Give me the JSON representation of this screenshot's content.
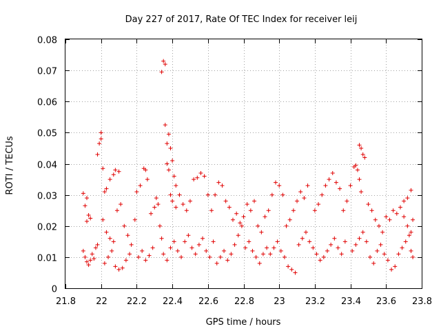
{
  "chart_data": {
    "type": "scatter",
    "title": "Day 227 of 2017, Rate Of TEC Index for receiver leij",
    "xlabel": "GPS time / hours",
    "ylabel": "ROTI / TECUs",
    "xlim": [
      21.8,
      23.8
    ],
    "ylim": [
      0,
      0.08
    ],
    "grid": true,
    "marker": "+",
    "color": "#e00000",
    "x_ticks": [
      21.8,
      22.0,
      22.2,
      22.4,
      22.6,
      22.8,
      23.0,
      23.2,
      23.4,
      23.6,
      23.8
    ],
    "x_tick_labels": [
      "21.8",
      "22",
      "22.2",
      "22.4",
      "22.6",
      "22.8",
      "23",
      "23.2",
      "23.4",
      "23.6",
      "23.8"
    ],
    "y_ticks": [
      0,
      0.01,
      0.02,
      0.03,
      0.04,
      0.05,
      0.06,
      0.07,
      0.08
    ],
    "y_tick_labels": [
      "0",
      "0.01",
      "0.02",
      "0.03",
      "0.04",
      "0.05",
      "0.06",
      "0.07",
      "0.08"
    ],
    "series": [
      {
        "name": "ROTI",
        "points": [
          [
            21.9,
            0.0305
          ],
          [
            21.91,
            0.0265
          ],
          [
            21.92,
            0.029
          ],
          [
            21.92,
            0.0215
          ],
          [
            21.93,
            0.0235
          ],
          [
            21.94,
            0.0225
          ],
          [
            21.9,
            0.012
          ],
          [
            21.91,
            0.01
          ],
          [
            21.92,
            0.0085
          ],
          [
            21.93,
            0.0075
          ],
          [
            21.94,
            0.009
          ],
          [
            21.95,
            0.011
          ],
          [
            21.96,
            0.0095
          ],
          [
            21.97,
            0.013
          ],
          [
            21.98,
            0.014
          ],
          [
            21.98,
            0.043
          ],
          [
            21.99,
            0.0465
          ],
          [
            22.0,
            0.048
          ],
          [
            22.0,
            0.05
          ],
          [
            22.01,
            0.0385
          ],
          [
            22.02,
            0.031
          ],
          [
            22.03,
            0.032
          ],
          [
            22.05,
            0.035
          ],
          [
            22.07,
            0.0365
          ],
          [
            22.08,
            0.038
          ],
          [
            22.1,
            0.0375
          ],
          [
            22.01,
            0.022
          ],
          [
            22.03,
            0.018
          ],
          [
            22.05,
            0.016
          ],
          [
            22.07,
            0.015
          ],
          [
            22.02,
            0.008
          ],
          [
            22.04,
            0.01
          ],
          [
            22.06,
            0.012
          ],
          [
            22.08,
            0.007
          ],
          [
            22.1,
            0.006
          ],
          [
            22.12,
            0.0065
          ],
          [
            22.14,
            0.009
          ],
          [
            22.16,
            0.011
          ],
          [
            22.09,
            0.025
          ],
          [
            22.11,
            0.027
          ],
          [
            22.13,
            0.02
          ],
          [
            22.15,
            0.017
          ],
          [
            22.17,
            0.014
          ],
          [
            22.19,
            0.022
          ],
          [
            22.2,
            0.031
          ],
          [
            22.22,
            0.033
          ],
          [
            22.24,
            0.0385
          ],
          [
            22.25,
            0.038
          ],
          [
            22.26,
            0.035
          ],
          [
            22.21,
            0.01
          ],
          [
            22.23,
            0.012
          ],
          [
            22.25,
            0.009
          ],
          [
            22.27,
            0.0105
          ],
          [
            22.29,
            0.013
          ],
          [
            22.28,
            0.024
          ],
          [
            22.3,
            0.026
          ],
          [
            22.31,
            0.029
          ],
          [
            22.32,
            0.027
          ],
          [
            22.33,
            0.02
          ],
          [
            22.34,
            0.016
          ],
          [
            22.34,
            0.0695
          ],
          [
            22.35,
            0.073
          ],
          [
            22.36,
            0.072
          ],
          [
            22.36,
            0.0525
          ],
          [
            22.37,
            0.0465
          ],
          [
            22.38,
            0.0495
          ],
          [
            22.39,
            0.045
          ],
          [
            22.37,
            0.04
          ],
          [
            22.38,
            0.038
          ],
          [
            22.4,
            0.041
          ],
          [
            22.41,
            0.036
          ],
          [
            22.42,
            0.033
          ],
          [
            22.39,
            0.03
          ],
          [
            22.4,
            0.028
          ],
          [
            22.42,
            0.026
          ],
          [
            22.35,
            0.011
          ],
          [
            22.37,
            0.009
          ],
          [
            22.39,
            0.013
          ],
          [
            22.41,
            0.015
          ],
          [
            22.43,
            0.012
          ],
          [
            22.45,
            0.01
          ],
          [
            22.44,
            0.03
          ],
          [
            22.46,
            0.027
          ],
          [
            22.48,
            0.025
          ],
          [
            22.5,
            0.028
          ],
          [
            22.52,
            0.035
          ],
          [
            22.54,
            0.0355
          ],
          [
            22.56,
            0.037
          ],
          [
            22.58,
            0.036
          ],
          [
            22.6,
            0.03
          ],
          [
            22.47,
            0.015
          ],
          [
            22.49,
            0.017
          ],
          [
            22.51,
            0.013
          ],
          [
            22.53,
            0.011
          ],
          [
            22.55,
            0.014
          ],
          [
            22.57,
            0.016
          ],
          [
            22.59,
            0.012
          ],
          [
            22.61,
            0.01
          ],
          [
            22.63,
            0.015
          ],
          [
            22.62,
            0.025
          ],
          [
            22.64,
            0.03
          ],
          [
            22.66,
            0.034
          ],
          [
            22.68,
            0.033
          ],
          [
            22.7,
            0.028
          ],
          [
            22.72,
            0.026
          ],
          [
            22.65,
            0.008
          ],
          [
            22.67,
            0.01
          ],
          [
            22.69,
            0.012
          ],
          [
            22.71,
            0.009
          ],
          [
            22.73,
            0.011
          ],
          [
            22.75,
            0.014
          ],
          [
            22.77,
            0.017
          ],
          [
            22.79,
            0.02
          ],
          [
            22.74,
            0.022
          ],
          [
            22.76,
            0.024
          ],
          [
            22.78,
            0.021
          ],
          [
            22.8,
            0.023
          ],
          [
            22.82,
            0.027
          ],
          [
            22.84,
            0.025
          ],
          [
            22.86,
            0.028
          ],
          [
            22.81,
            0.013
          ],
          [
            22.83,
            0.015
          ],
          [
            22.85,
            0.012
          ],
          [
            22.87,
            0.01
          ],
          [
            22.89,
            0.008
          ],
          [
            22.91,
            0.011
          ],
          [
            22.93,
            0.013
          ],
          [
            22.88,
            0.02
          ],
          [
            22.9,
            0.018
          ],
          [
            22.92,
            0.023
          ],
          [
            22.94,
            0.025
          ],
          [
            22.96,
            0.03
          ],
          [
            22.98,
            0.034
          ],
          [
            23.0,
            0.033
          ],
          [
            23.02,
            0.03
          ],
          [
            22.95,
            0.011
          ],
          [
            22.97,
            0.013
          ],
          [
            22.99,
            0.015
          ],
          [
            23.01,
            0.012
          ],
          [
            23.03,
            0.01
          ],
          [
            23.05,
            0.007
          ],
          [
            23.07,
            0.006
          ],
          [
            23.09,
            0.005
          ],
          [
            23.04,
            0.02
          ],
          [
            23.06,
            0.022
          ],
          [
            23.08,
            0.025
          ],
          [
            23.1,
            0.028
          ],
          [
            23.12,
            0.031
          ],
          [
            23.14,
            0.029
          ],
          [
            23.16,
            0.033
          ],
          [
            23.11,
            0.014
          ],
          [
            23.13,
            0.016
          ],
          [
            23.15,
            0.018
          ],
          [
            23.17,
            0.015
          ],
          [
            23.19,
            0.013
          ],
          [
            23.21,
            0.011
          ],
          [
            23.23,
            0.009
          ],
          [
            23.2,
            0.025
          ],
          [
            23.22,
            0.027
          ],
          [
            23.24,
            0.03
          ],
          [
            23.26,
            0.033
          ],
          [
            23.28,
            0.035
          ],
          [
            23.3,
            0.037
          ],
          [
            23.32,
            0.034
          ],
          [
            23.34,
            0.032
          ],
          [
            23.25,
            0.01
          ],
          [
            23.27,
            0.012
          ],
          [
            23.29,
            0.014
          ],
          [
            23.31,
            0.016
          ],
          [
            23.33,
            0.013
          ],
          [
            23.35,
            0.011
          ],
          [
            23.37,
            0.015
          ],
          [
            23.36,
            0.025
          ],
          [
            23.38,
            0.028
          ],
          [
            23.4,
            0.033
          ],
          [
            23.42,
            0.039
          ],
          [
            23.43,
            0.0395
          ],
          [
            23.44,
            0.038
          ],
          [
            23.45,
            0.035
          ],
          [
            23.46,
            0.031
          ],
          [
            23.45,
            0.046
          ],
          [
            23.46,
            0.045
          ],
          [
            23.47,
            0.043
          ],
          [
            23.48,
            0.042
          ],
          [
            23.41,
            0.012
          ],
          [
            23.43,
            0.014
          ],
          [
            23.45,
            0.016
          ],
          [
            23.47,
            0.018
          ],
          [
            23.49,
            0.015
          ],
          [
            23.5,
            0.027
          ],
          [
            23.52,
            0.025
          ],
          [
            23.54,
            0.022
          ],
          [
            23.56,
            0.02
          ],
          [
            23.58,
            0.018
          ],
          [
            23.6,
            0.023
          ],
          [
            23.51,
            0.01
          ],
          [
            23.53,
            0.008
          ],
          [
            23.55,
            0.012
          ],
          [
            23.57,
            0.014
          ],
          [
            23.59,
            0.011
          ],
          [
            23.61,
            0.009
          ],
          [
            23.63,
            0.006
          ],
          [
            23.65,
            0.007
          ],
          [
            23.62,
            0.022
          ],
          [
            23.64,
            0.025
          ],
          [
            23.66,
            0.024
          ],
          [
            23.68,
            0.026
          ],
          [
            23.7,
            0.028
          ],
          [
            23.72,
            0.029
          ],
          [
            23.74,
            0.0315
          ],
          [
            23.67,
            0.011
          ],
          [
            23.69,
            0.013
          ],
          [
            23.71,
            0.015
          ],
          [
            23.73,
            0.017
          ],
          [
            23.74,
            0.012
          ],
          [
            23.75,
            0.01
          ],
          [
            23.7,
            0.023
          ],
          [
            23.72,
            0.02
          ],
          [
            23.74,
            0.018
          ],
          [
            23.75,
            0.022
          ]
        ]
      }
    ]
  }
}
